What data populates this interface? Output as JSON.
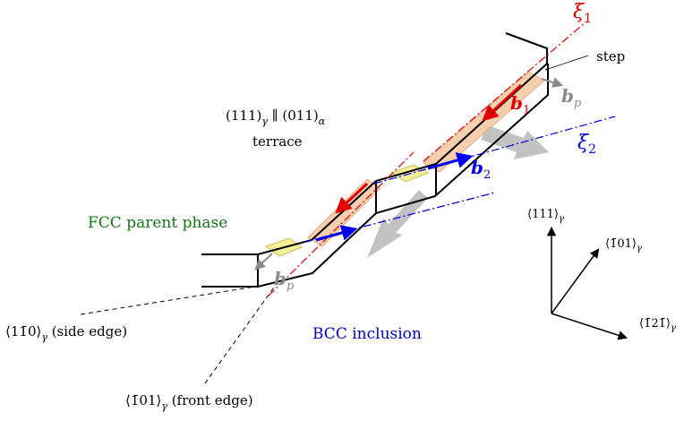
{
  "labels": {
    "xi1": "ξ",
    "xi1_sub": "1",
    "xi2": "ξ",
    "xi2_sub": "2",
    "step": "step",
    "b1": "b",
    "b1_sub": "1",
    "b2": "b",
    "b2_sub": "2",
    "bp_top": "b",
    "bp_top_sub": "p",
    "bp_bottom": "b",
    "bp_bottom_sub": "p",
    "plane_left": "(111)",
    "plane_left_sub": "γ",
    "plane_parallel": " ∥ ",
    "plane_right": "(011)",
    "plane_right_sub": "α",
    "terrace": "terrace",
    "fcc": "FCC parent phase",
    "bcc": "BCC inclusion",
    "side_edge_dir": "⟨11̄0⟩",
    "side_edge_sub": "γ",
    "side_edge_text": " (side edge)",
    "front_edge_dir": "⟨1̄01⟩",
    "front_edge_sub": "γ",
    "front_edge_text": " (front edge)",
    "axis_111": "⟨111⟩",
    "axis_111_sub": "γ",
    "axis_101": "⟨1̄01⟩",
    "axis_101_sub": "γ",
    "axis_121": "⟨1̄21̄⟩",
    "axis_121_sub": "γ"
  },
  "colors": {
    "xi1": "#e00000",
    "xi2": "#0000dd",
    "burgers_red": "#e00000",
    "burgers_blue": "#0000ee",
    "partial_gray": "#8a8a8a",
    "fcc": "#117711",
    "bcc": "#0000cc",
    "strip_fill": "#f7c9a6",
    "strip_stroke": "#e2a27a",
    "patch_fill": "#f5f19a",
    "patch_stroke": "#c9c25a",
    "big_arrow": "#c2c2c2"
  }
}
